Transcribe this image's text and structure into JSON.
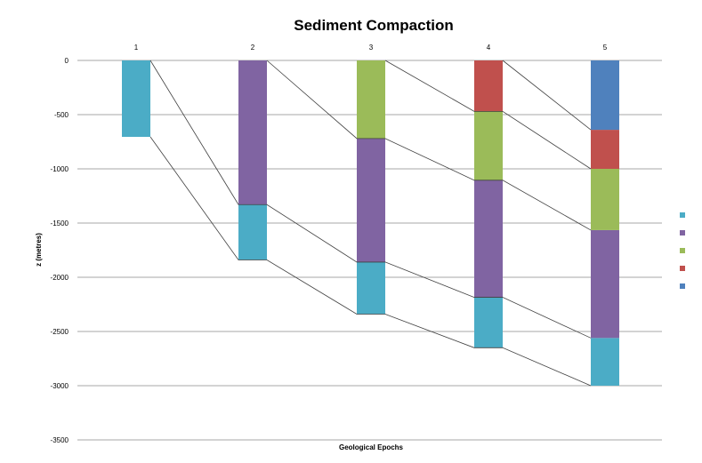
{
  "chart_data": {
    "type": "bar",
    "title": "Sediment Compaction",
    "xlabel": "Geological Epochs",
    "ylabel": "z (metres)",
    "ylim": [
      -3500,
      0
    ],
    "yticks": [
      0,
      -500,
      -1000,
      -1500,
      -2000,
      -2500,
      -3000,
      -3500
    ],
    "categories": [
      "1",
      "2",
      "3",
      "4",
      "5"
    ],
    "grid": true,
    "legend_position": "right",
    "stacked": true,
    "series": [
      {
        "color": "#4bacc6",
        "values": [
          [
            0,
            -705
          ],
          [
            -1330,
            -1840
          ],
          [
            -1860,
            -2340
          ],
          [
            -2185,
            -2650
          ],
          [
            -2560,
            -3000
          ]
        ]
      },
      {
        "color": "#8064a2",
        "values": [
          null,
          [
            0,
            -1330
          ],
          [
            -720,
            -1860
          ],
          [
            -1105,
            -2185
          ],
          [
            -1565,
            -2560
          ]
        ]
      },
      {
        "color": "#9bbb59",
        "values": [
          null,
          null,
          [
            0,
            -720
          ],
          [
            -470,
            -1105
          ],
          [
            -1000,
            -1565
          ]
        ]
      },
      {
        "color": "#c0504d",
        "values": [
          null,
          null,
          null,
          [
            0,
            -470
          ],
          [
            -640,
            -1000
          ]
        ]
      },
      {
        "color": "#4f81bd",
        "values": [
          null,
          null,
          null,
          null,
          [
            0,
            -640
          ]
        ]
      }
    ],
    "connectors": [
      [
        [
          1,
          0
        ],
        [
          2,
          -1330
        ],
        [
          3,
          -1860
        ],
        [
          4,
          -2185
        ],
        [
          5,
          -2560
        ]
      ],
      [
        [
          1,
          -705
        ],
        [
          2,
          -1840
        ],
        [
          3,
          -2340
        ],
        [
          4,
          -2650
        ],
        [
          5,
          -3000
        ]
      ],
      [
        [
          2,
          0
        ],
        [
          3,
          -720
        ],
        [
          4,
          -1105
        ],
        [
          5,
          -1565
        ]
      ],
      [
        [
          3,
          0
        ],
        [
          4,
          -470
        ],
        [
          5,
          -1000
        ]
      ],
      [
        [
          4,
          0
        ],
        [
          5,
          -640
        ]
      ]
    ]
  }
}
